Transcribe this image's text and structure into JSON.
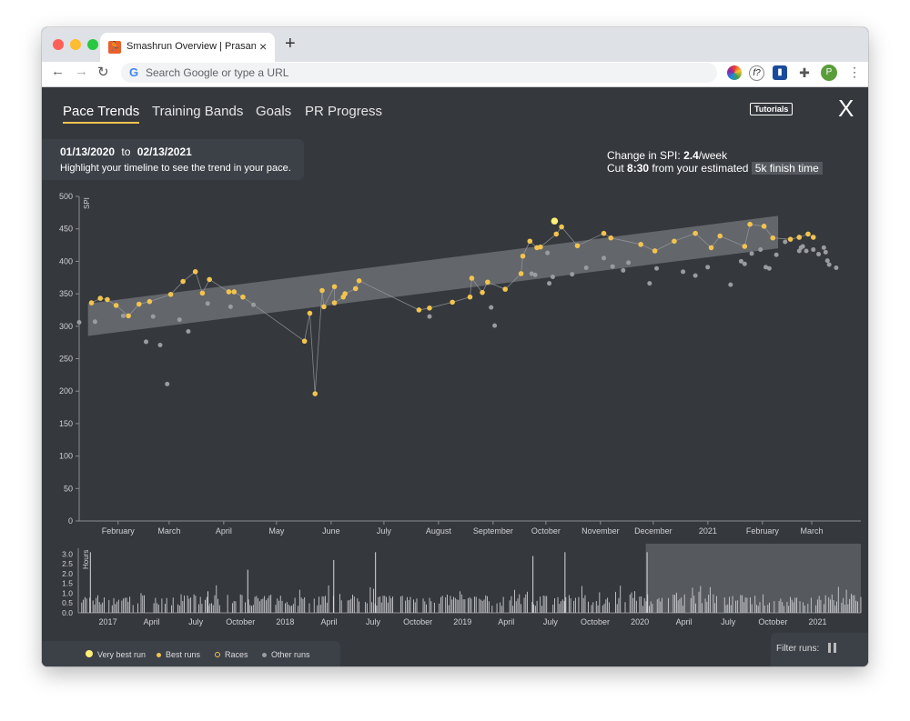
{
  "browser": {
    "tab_title": "Smashrun Overview | Prasanna",
    "tab_close": "×",
    "new_tab": "+",
    "address_placeholder": "Search Google or type a URL",
    "extensions": [
      "color-wheel-icon",
      "f?",
      "pocket-icon",
      "puzzle-icon"
    ],
    "profile_initial": "P"
  },
  "app": {
    "tabs": [
      "Pace Trends",
      "Training Bands",
      "Goals",
      "PR Progress"
    ],
    "active_tab": "Pace Trends",
    "tutorials_label": "Tutorials",
    "close_label": "X",
    "date_range": {
      "start": "01/13/2020",
      "to": "to",
      "end": "02/13/2021",
      "hint": "Highlight your timeline to see the trend in your pace."
    },
    "spi_summary": {
      "change_prefix": "Change in SPI:",
      "change_value": "2.4",
      "change_suffix": "/week",
      "cut_prefix": "Cut",
      "cut_value": "8:30",
      "cut_middle": "from your estimated",
      "finish_label": "5k finish time"
    },
    "legend": [
      {
        "label": "Very best run",
        "color": "#fff176"
      },
      {
        "label": "Best runs",
        "color": "#f2c44e"
      },
      {
        "label": "Races",
        "color": "#f2c44e"
      },
      {
        "label": "Other runs",
        "color": "#9a9ca0"
      }
    ],
    "filter_label": "Filter runs:"
  },
  "chart_data": [
    {
      "type": "scatter",
      "ylabel": "SPI",
      "ylim": [
        0,
        500
      ],
      "yticks": [
        0,
        50,
        100,
        150,
        200,
        250,
        300,
        350,
        400,
        450,
        500
      ],
      "x_ticks": [
        "February",
        "March",
        "April",
        "May",
        "June",
        "July",
        "August",
        "September",
        "October",
        "November",
        "December",
        "2021",
        "February",
        "March"
      ],
      "trend_band": {
        "start": {
          "x": "2020-01-18",
          "y": 310
        },
        "end": {
          "x": "2021-02-13",
          "y": 445
        }
      },
      "best_runs": [
        {
          "x": "2020-01-20",
          "y": 336
        },
        {
          "x": "2020-01-25",
          "y": 343
        },
        {
          "x": "2020-01-29",
          "y": 341
        },
        {
          "x": "2020-02-03",
          "y": 332
        },
        {
          "x": "2020-02-10",
          "y": 316
        },
        {
          "x": "2020-02-16",
          "y": 334
        },
        {
          "x": "2020-02-22",
          "y": 338
        },
        {
          "x": "2020-03-05",
          "y": 349
        },
        {
          "x": "2020-03-12",
          "y": 369
        },
        {
          "x": "2020-03-19",
          "y": 384
        },
        {
          "x": "2020-03-23",
          "y": 351
        },
        {
          "x": "2020-03-27",
          "y": 372
        },
        {
          "x": "2020-04-07",
          "y": 353
        },
        {
          "x": "2020-04-10",
          "y": 353
        },
        {
          "x": "2020-04-15",
          "y": 345
        },
        {
          "x": "2020-05-20",
          "y": 277
        },
        {
          "x": "2020-05-23",
          "y": 320
        },
        {
          "x": "2020-05-26",
          "y": 196
        },
        {
          "x": "2020-05-30",
          "y": 355
        },
        {
          "x": "2020-05-31",
          "y": 330
        },
        {
          "x": "2020-06-06",
          "y": 361
        },
        {
          "x": "2020-06-06",
          "y": 336
        },
        {
          "x": "2020-06-11",
          "y": 345
        },
        {
          "x": "2020-06-12",
          "y": 350
        },
        {
          "x": "2020-06-18",
          "y": 358
        },
        {
          "x": "2020-06-20",
          "y": 370
        },
        {
          "x": "2020-07-24",
          "y": 325
        },
        {
          "x": "2020-07-30",
          "y": 328
        },
        {
          "x": "2020-08-12",
          "y": 337
        },
        {
          "x": "2020-08-22",
          "y": 345
        },
        {
          "x": "2020-08-23",
          "y": 374
        },
        {
          "x": "2020-08-29",
          "y": 352
        },
        {
          "x": "2020-09-01",
          "y": 368
        },
        {
          "x": "2020-09-11",
          "y": 357
        },
        {
          "x": "2020-09-20",
          "y": 381
        },
        {
          "x": "2020-09-21",
          "y": 408
        },
        {
          "x": "2020-09-25",
          "y": 431
        },
        {
          "x": "2020-09-29",
          "y": 421
        },
        {
          "x": "2020-10-01",
          "y": 422
        },
        {
          "x": "2020-10-10",
          "y": 442
        },
        {
          "x": "2020-10-13",
          "y": 453
        },
        {
          "x": "2020-10-22",
          "y": 424
        },
        {
          "x": "2020-11-06",
          "y": 443
        },
        {
          "x": "2020-11-10",
          "y": 436
        },
        {
          "x": "2020-11-27",
          "y": 426
        },
        {
          "x": "2020-12-05",
          "y": 416
        },
        {
          "x": "2020-12-16",
          "y": 431
        },
        {
          "x": "2020-12-28",
          "y": 443
        },
        {
          "x": "2021-01-06",
          "y": 421
        },
        {
          "x": "2021-01-11",
          "y": 439
        },
        {
          "x": "2021-01-25",
          "y": 423
        },
        {
          "x": "2021-01-28",
          "y": 457
        },
        {
          "x": "2021-02-05",
          "y": 454
        },
        {
          "x": "2021-02-10",
          "y": 436
        },
        {
          "x": "2021-02-20",
          "y": 434
        },
        {
          "x": "2021-02-25",
          "y": 437
        },
        {
          "x": "2021-03-02",
          "y": 442
        },
        {
          "x": "2021-03-05",
          "y": 437
        }
      ],
      "very_best_runs": [
        {
          "x": "2020-10-09",
          "y": 462
        }
      ],
      "other_runs": [
        {
          "x": "2020-01-13",
          "y": 306
        },
        {
          "x": "2020-01-22",
          "y": 307
        },
        {
          "x": "2020-02-07",
          "y": 316
        },
        {
          "x": "2020-02-20",
          "y": 276
        },
        {
          "x": "2020-02-24",
          "y": 315
        },
        {
          "x": "2020-02-28",
          "y": 271
        },
        {
          "x": "2020-03-03",
          "y": 211
        },
        {
          "x": "2020-03-10",
          "y": 310
        },
        {
          "x": "2020-03-15",
          "y": 292
        },
        {
          "x": "2020-03-26",
          "y": 335
        },
        {
          "x": "2020-04-08",
          "y": 330
        },
        {
          "x": "2020-04-21",
          "y": 333
        },
        {
          "x": "2020-07-30",
          "y": 315
        },
        {
          "x": "2020-09-03",
          "y": 329
        },
        {
          "x": "2020-09-05",
          "y": 301
        },
        {
          "x": "2020-09-26",
          "y": 381
        },
        {
          "x": "2020-09-28",
          "y": 379
        },
        {
          "x": "2020-10-05",
          "y": 413
        },
        {
          "x": "2020-10-06",
          "y": 366
        },
        {
          "x": "2020-10-08",
          "y": 376
        },
        {
          "x": "2020-10-19",
          "y": 380
        },
        {
          "x": "2020-10-27",
          "y": 390
        },
        {
          "x": "2020-11-06",
          "y": 405
        },
        {
          "x": "2020-11-11",
          "y": 392
        },
        {
          "x": "2020-11-17",
          "y": 386
        },
        {
          "x": "2020-11-20",
          "y": 398
        },
        {
          "x": "2020-12-02",
          "y": 366
        },
        {
          "x": "2020-12-06",
          "y": 389
        },
        {
          "x": "2020-12-21",
          "y": 384
        },
        {
          "x": "2020-12-28",
          "y": 378
        },
        {
          "x": "2021-01-04",
          "y": 391
        },
        {
          "x": "2021-01-17",
          "y": 364
        },
        {
          "x": "2021-01-23",
          "y": 400
        },
        {
          "x": "2021-01-25",
          "y": 396
        },
        {
          "x": "2021-01-29",
          "y": 412
        },
        {
          "x": "2021-02-03",
          "y": 418
        },
        {
          "x": "2021-02-06",
          "y": 391
        },
        {
          "x": "2021-02-08",
          "y": 389
        },
        {
          "x": "2021-02-12",
          "y": 410
        },
        {
          "x": "2021-02-17",
          "y": 430
        },
        {
          "x": "2021-02-25",
          "y": 416
        },
        {
          "x": "2021-02-26",
          "y": 421
        },
        {
          "x": "2021-02-27",
          "y": 423
        },
        {
          "x": "2021-03-01",
          "y": 416
        },
        {
          "x": "2021-03-05",
          "y": 418
        },
        {
          "x": "2021-03-08",
          "y": 411
        },
        {
          "x": "2021-03-11",
          "y": 421
        },
        {
          "x": "2021-03-12",
          "y": 414
        },
        {
          "x": "2021-03-13",
          "y": 401
        },
        {
          "x": "2021-03-14",
          "y": 395
        },
        {
          "x": "2021-03-18",
          "y": 390
        }
      ]
    },
    {
      "type": "bar",
      "ylabel": "Hours",
      "ylim": [
        0,
        3.3
      ],
      "yticks": [
        "0.0",
        "0.5",
        "1.0",
        "1.5",
        "2.0",
        "2.5",
        "3.0"
      ],
      "x_ticks": [
        "2017",
        "April",
        "July",
        "October",
        "2018",
        "April",
        "July",
        "October",
        "2019",
        "April",
        "July",
        "October",
        "2020",
        "April",
        "July",
        "October",
        "2021"
      ],
      "x_range": [
        "2016-11-01",
        "2021-03-31"
      ],
      "highlight": {
        "start": "2020-01-13",
        "end": "2021-03-31"
      },
      "tall_runs": [
        {
          "x": "2016-11-25",
          "y": 3.1
        },
        {
          "x": "2017-07-25",
          "y": 1.1
        },
        {
          "x": "2017-10-15",
          "y": 2.2
        },
        {
          "x": "2018-04-10",
          "y": 2.7
        },
        {
          "x": "2018-07-05",
          "y": 3.1
        },
        {
          "x": "2019-05-25",
          "y": 2.9
        },
        {
          "x": "2019-07-30",
          "y": 3.1
        },
        {
          "x": "2020-01-15",
          "y": 3.1
        }
      ]
    }
  ]
}
